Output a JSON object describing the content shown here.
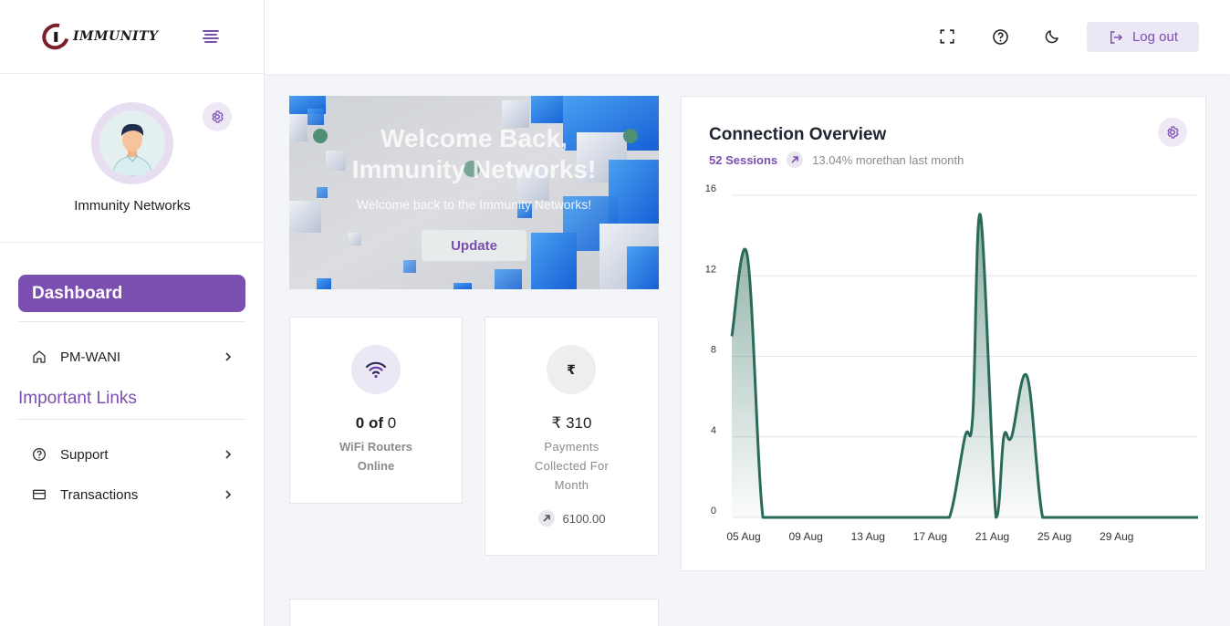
{
  "sidebar": {
    "logo_text": "IMMUNITY",
    "profile_name": "Immunity Networks",
    "dashboard_label": "Dashboard",
    "items": [
      {
        "label": "PM-WANI",
        "icon": "home-icon"
      }
    ],
    "important_links_title": "Important Links",
    "links": [
      {
        "label": "Support",
        "icon": "question-circle-icon"
      },
      {
        "label": "Transactions",
        "icon": "card-icon"
      }
    ]
  },
  "header": {
    "icons": [
      "fullscreen-icon",
      "help-icon",
      "moon-icon"
    ],
    "logout_label": "Log out"
  },
  "banner": {
    "title_line1": "Welcome Back,",
    "title_line2": "Immunity Networks!",
    "subtitle": "Welcome back to the Immunity Networks!",
    "button_label": "Update"
  },
  "stats": {
    "routers": {
      "online": "0",
      "of_text": "of",
      "total": "0",
      "label_line1": "WiFi Routers",
      "label_line2": "Online",
      "icon": "wifi-icon"
    },
    "payments": {
      "value": "₹ 310",
      "label_line1": "Payments",
      "label_line2": "Collected For",
      "label_line3": "Month",
      "icon_glyph": "₹",
      "foot_value": "6100.00"
    }
  },
  "colors": {
    "accent": "#7b4fb0",
    "series": "#2a6a5a"
  },
  "chart_data": {
    "type": "area",
    "title": "Connection Overview",
    "sessions": "52 Sessions",
    "change_text": "13.04% morethan last month",
    "x_tick_labels": [
      "05 Aug",
      "09 Aug",
      "13 Aug",
      "17 Aug",
      "21 Aug",
      "25 Aug",
      "29 Aug"
    ],
    "y_ticks": [
      0,
      4,
      8,
      12,
      16
    ],
    "ylim": [
      0,
      16
    ],
    "xlim": [
      5,
      35
    ],
    "grid": true,
    "series": [
      {
        "x": [
          5,
          6,
          7,
          8,
          9,
          10,
          11,
          12,
          13,
          14,
          15,
          16,
          17,
          18,
          19,
          20,
          20.5,
          21,
          22,
          22.5,
          23,
          24,
          25,
          26,
          27,
          28,
          29,
          30,
          31,
          32,
          33,
          34,
          35
        ],
        "values": [
          9,
          13,
          0,
          0,
          0,
          0,
          0,
          0,
          0,
          0,
          0,
          0,
          0,
          0,
          0,
          4,
          5,
          15,
          0,
          4,
          4,
          7,
          0,
          0,
          0,
          0,
          0,
          0,
          0,
          0,
          0,
          0,
          0
        ]
      }
    ]
  }
}
